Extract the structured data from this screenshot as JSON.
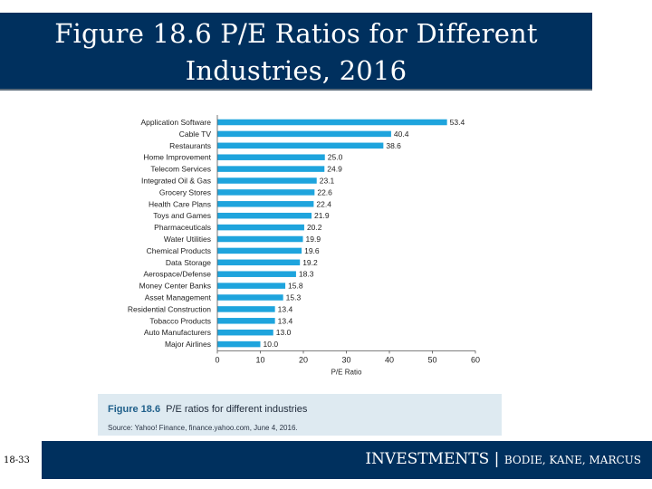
{
  "header": {
    "title_line1": "Figure 18.6 P/E Ratios for Different",
    "title_line2": "Industries, 2016"
  },
  "chart_data": {
    "type": "bar",
    "orientation": "horizontal",
    "categories": [
      "Application Software",
      "Cable TV",
      "Restaurants",
      "Home Improvement",
      "Telecom Services",
      "Integrated Oil & Gas",
      "Grocery Stores",
      "Health Care Plans",
      "Toys and Games",
      "Pharmaceuticals",
      "Water Utilities",
      "Chemical Products",
      "Data Storage",
      "Aerospace/Defense",
      "Money Center Banks",
      "Asset Management",
      "Residential Construction",
      "Tobacco Products",
      "Auto Manufacturers",
      "Major Airlines"
    ],
    "values": [
      53.4,
      40.4,
      38.6,
      25.0,
      24.9,
      23.1,
      22.6,
      22.4,
      21.9,
      20.2,
      19.9,
      19.6,
      19.2,
      18.3,
      15.8,
      15.3,
      13.4,
      13.4,
      13.0,
      10.0
    ],
    "value_labels": [
      "53.4",
      "40.4",
      "38.6",
      "25.0",
      "24.9",
      "23.1",
      "22.6",
      "22.4",
      "21.9",
      "20.2",
      "19.9",
      "19.6",
      "19.2",
      "18.3",
      "15.8",
      "15.3",
      "13.4",
      "13.4",
      "13.0",
      "10.0"
    ],
    "xlabel": "P/E Ratio",
    "xlim": [
      0,
      60
    ],
    "xticks": [
      0,
      10,
      20,
      30,
      40,
      50,
      60
    ],
    "bar_color": "#1ea4dd",
    "grid": false
  },
  "figure": {
    "caption_number": "Figure 18.6",
    "caption_text": "P/E ratios for different industries",
    "source": "Source: Yahoo! Finance, finance.yahoo.com, June 4, 2016."
  },
  "footer": {
    "page_number": "18-33",
    "book": "INVESTMENTS",
    "separator": " | ",
    "authors": "BODIE, KANE, MARCUS"
  },
  "colors": {
    "navy": "#00305e",
    "bar": "#1ea4dd",
    "panel": "#deeaf1"
  }
}
